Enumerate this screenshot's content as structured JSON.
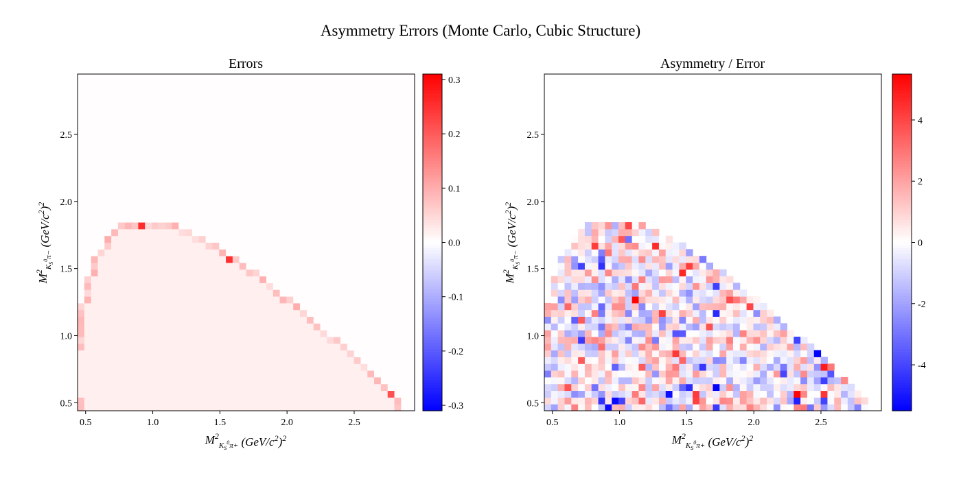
{
  "figure": {
    "title": "Asymmetry Errors (Monte Carlo, Cubic Structure)"
  },
  "chart_data": [
    {
      "type": "heatmap",
      "title": "Errors",
      "xlabel": "M²_{K_S^0 π+} (GeV/c²)²",
      "ylabel": "M²_{K_S^0 π−} (GeV/c²)²",
      "xlim": [
        0.44,
        2.95
      ],
      "ylim": [
        0.44,
        2.95
      ],
      "xticks": [
        "0.5",
        "1.0",
        "1.5",
        "2.0",
        "2.5"
      ],
      "yticks": [
        "0.5",
        "1.0",
        "1.5",
        "2.0",
        "2.5"
      ],
      "colormap": "bwr",
      "colorbar": {
        "min": -0.31,
        "max": 0.31,
        "ticks": [
          "-0.3",
          "-0.2",
          "-0.1",
          "0.0",
          "0.1",
          "0.2",
          "0.3"
        ]
      },
      "description_values": {
        "interior_value": 0.02,
        "edge_values_range": [
          0.03,
          0.31
        ]
      }
    },
    {
      "type": "heatmap",
      "title": "Asymmetry / Error",
      "xlabel": "M²_{K_S^0 π+} (GeV/c²)²",
      "ylabel": "M²_{K_S^0 π−} (GeV/c²)²",
      "xlim": [
        0.44,
        2.95
      ],
      "ylim": [
        0.44,
        2.95
      ],
      "xticks": [
        "0.5",
        "1.0",
        "1.5",
        "2.0",
        "2.5"
      ],
      "yticks": [
        "0.5",
        "1.0",
        "1.5",
        "2.0",
        "2.5"
      ],
      "colormap": "bwr",
      "colorbar": {
        "min": -5.5,
        "max": 5.5,
        "ticks": [
          "-4",
          "-2",
          "0",
          "2",
          "4"
        ]
      },
      "description_values": {
        "value_range": [
          -5.5,
          5.5
        ]
      }
    }
  ],
  "colors": {
    "low": "#0000ff",
    "mid": "#ffffff",
    "high": "#ff0000"
  }
}
